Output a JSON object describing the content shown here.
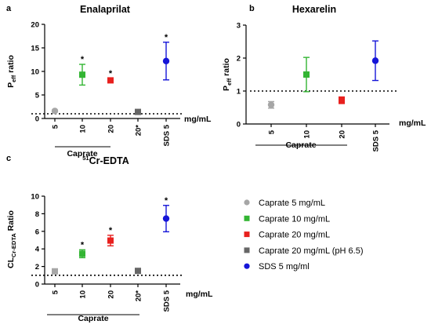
{
  "legend": [
    {
      "label": "Caprate 5 mg/mL",
      "color": "#a6a6a6",
      "marker": "circle"
    },
    {
      "label": "Caprate 10 mg/mL",
      "color": "#33b533",
      "marker": "square"
    },
    {
      "label": "Caprate 20 mg/mL",
      "color": "#e8201e",
      "marker": "square"
    },
    {
      "label": "Caprate 20 mg/mL (pH 6.5)",
      "color": "#666666",
      "marker": "square"
    },
    {
      "label": "SDS 5 mg/ml",
      "color": "#1515d8",
      "marker": "circle"
    }
  ],
  "chart_data": [
    {
      "type": "scatter",
      "panel": "a",
      "title": "Enalaprilat",
      "ylabel_main": "P",
      "ylabel_sub": "eff",
      "ylabel_rest": " ratio",
      "unit_label": "mg/mL",
      "group_label": "Caprate",
      "categories": [
        "5",
        "10",
        "20",
        "20*",
        "SDS 5"
      ],
      "ylim": [
        0,
        20
      ],
      "yticks": [
        0,
        5,
        10,
        15,
        20
      ],
      "reference_line": 1,
      "points": [
        {
          "x": "5",
          "y": 1.6,
          "err": 0.2,
          "color": "#a6a6a6",
          "marker": "circle",
          "star": ""
        },
        {
          "x": "10",
          "y": 9.3,
          "err": 2.2,
          "color": "#33b533",
          "marker": "square",
          "star": "*"
        },
        {
          "x": "20",
          "y": 8.1,
          "err": 0.4,
          "color": "#e8201e",
          "marker": "square",
          "star": "*"
        },
        {
          "x": "20*",
          "y": 1.4,
          "err": 0.2,
          "color": "#666666",
          "marker": "square",
          "star": ""
        },
        {
          "x": "SDS 5",
          "y": 12.2,
          "err": 4.0,
          "color": "#1515d8",
          "marker": "circle",
          "star": "*"
        }
      ]
    },
    {
      "type": "scatter",
      "panel": "b",
      "title": "Hexarelin",
      "ylabel_main": "P",
      "ylabel_sub": "eff",
      "ylabel_rest": " ratio",
      "unit_label": "mg/mL",
      "group_label": "Caprate",
      "categories": [
        "5",
        "10",
        "20",
        "SDS 5"
      ],
      "ylim": [
        0,
        3
      ],
      "yticks": [
        0,
        1,
        2,
        3
      ],
      "reference_line": 1,
      "points": [
        {
          "x": "5",
          "y": 0.58,
          "err": 0.1,
          "color": "#a6a6a6",
          "marker": "circle",
          "star": ""
        },
        {
          "x": "10",
          "y": 1.5,
          "err": 0.52,
          "color": "#33b533",
          "marker": "square",
          "star": ""
        },
        {
          "x": "20",
          "y": 0.72,
          "err": 0.1,
          "color": "#e8201e",
          "marker": "square",
          "star": ""
        },
        {
          "x": "SDS 5",
          "y": 1.92,
          "err": 0.6,
          "color": "#1515d8",
          "marker": "circle",
          "star": ""
        }
      ]
    },
    {
      "type": "scatter",
      "panel": "c",
      "title_sup": "51",
      "title": "Cr-EDTA",
      "ylabel_main": "CL",
      "ylabel_sub": "Cr-EDTA",
      "ylabel_rest": " Ratio",
      "unit_label": "mg/mL",
      "group_label": "Caprate",
      "categories": [
        "5",
        "10",
        "20",
        "20*",
        "SDS 5"
      ],
      "ylim": [
        0,
        10
      ],
      "yticks": [
        0,
        2,
        4,
        6,
        8,
        10
      ],
      "reference_line": 1,
      "points": [
        {
          "x": "5",
          "y": 1.45,
          "err": 0.12,
          "color": "#a6a6a6",
          "marker": "square",
          "star": ""
        },
        {
          "x": "10",
          "y": 3.45,
          "err": 0.45,
          "color": "#33b533",
          "marker": "square",
          "star": "*"
        },
        {
          "x": "20",
          "y": 4.95,
          "err": 0.6,
          "color": "#e8201e",
          "marker": "square",
          "star": "*"
        },
        {
          "x": "20*",
          "y": 1.5,
          "err": 0.15,
          "color": "#666666",
          "marker": "square",
          "star": ""
        },
        {
          "x": "SDS 5",
          "y": 7.45,
          "err": 1.5,
          "color": "#1515d8",
          "marker": "circle",
          "star": "*"
        }
      ]
    }
  ]
}
